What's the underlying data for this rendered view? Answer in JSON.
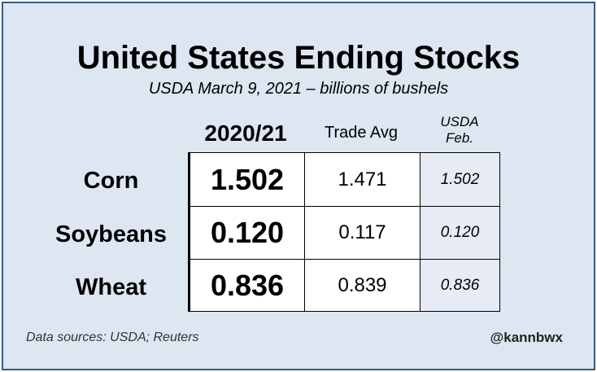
{
  "chart_data": {
    "type": "table",
    "title": "United States Ending Stocks",
    "subtitle": "USDA March 9, 2021 – billions of bushels",
    "columns": {
      "main": "2020/21",
      "trade": "Trade Avg",
      "feb_line1": "USDA",
      "feb_line2": "Feb."
    },
    "rows": [
      {
        "label": "Corn",
        "main": "1.502",
        "trade": "1.471",
        "feb": "1.502"
      },
      {
        "label": "Soybeans",
        "main": "0.120",
        "trade": "0.117",
        "feb": "0.120"
      },
      {
        "label": "Wheat",
        "main": "0.836",
        "trade": "0.839",
        "feb": "0.836"
      }
    ]
  },
  "footer": {
    "source": "Data sources: USDA; Reuters",
    "handle": "@kannbwx"
  },
  "colors": {
    "frame_border": "#3b5a82",
    "background": "#dde6f1",
    "feb_column": "#e6ebf6"
  }
}
